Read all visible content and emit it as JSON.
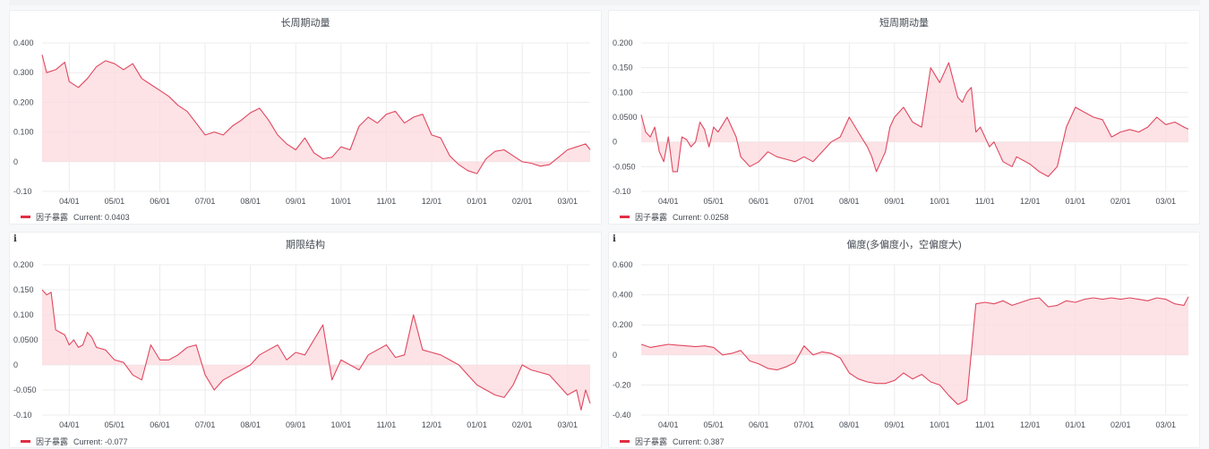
{
  "legend_label": "因子暴露",
  "current_prefix": "Current:",
  "info_icon_glyph": "i",
  "colors": {
    "line": "#e0475e",
    "fill": "#fcdbe0",
    "legend": "#e02f44",
    "grid": "#ececec"
  },
  "chart_data": [
    {
      "type": "area",
      "title": "长周期动量",
      "ylim": [
        -0.1,
        0.4
      ],
      "yticks": [
        -0.1,
        0,
        0.1,
        0.2,
        0.3,
        0.4
      ],
      "ytick_labels": [
        "-0.10",
        "0",
        "0.100",
        "0.200",
        "0.300",
        "0.400"
      ],
      "xlim": [
        0,
        12.1
      ],
      "xticks": [
        0.6,
        1.6,
        2.6,
        3.6,
        4.6,
        5.6,
        6.6,
        7.6,
        8.6,
        9.6,
        10.6,
        11.6
      ],
      "xtick_labels": [
        "04/01",
        "05/01",
        "06/01",
        "07/01",
        "08/01",
        "09/01",
        "10/01",
        "11/01",
        "12/01",
        "01/01",
        "02/01",
        "03/01"
      ],
      "current": "0.0403",
      "series": [
        {
          "name": "因子暴露",
          "x": [
            0,
            0.1,
            0.3,
            0.5,
            0.6,
            0.8,
            1.0,
            1.2,
            1.4,
            1.6,
            1.8,
            2.0,
            2.2,
            2.4,
            2.6,
            2.8,
            3.0,
            3.2,
            3.4,
            3.6,
            3.8,
            4.0,
            4.2,
            4.4,
            4.6,
            4.8,
            5.0,
            5.2,
            5.4,
            5.6,
            5.8,
            6.0,
            6.2,
            6.4,
            6.6,
            6.8,
            7.0,
            7.2,
            7.4,
            7.6,
            7.8,
            8.0,
            8.2,
            8.4,
            8.6,
            8.8,
            9.0,
            9.2,
            9.4,
            9.6,
            9.8,
            10.0,
            10.2,
            10.4,
            10.6,
            10.8,
            11.0,
            11.2,
            11.4,
            11.6,
            11.8,
            12.0,
            12.1
          ],
          "values": [
            0.36,
            0.3,
            0.31,
            0.335,
            0.27,
            0.25,
            0.28,
            0.32,
            0.34,
            0.33,
            0.31,
            0.33,
            0.28,
            0.26,
            0.24,
            0.22,
            0.19,
            0.17,
            0.13,
            0.09,
            0.1,
            0.09,
            0.12,
            0.14,
            0.165,
            0.18,
            0.14,
            0.09,
            0.06,
            0.04,
            0.08,
            0.03,
            0.01,
            0.015,
            0.05,
            0.04,
            0.12,
            0.15,
            0.13,
            0.16,
            0.17,
            0.13,
            0.15,
            0.16,
            0.09,
            0.08,
            0.02,
            -0.01,
            -0.03,
            -0.04,
            0.01,
            0.035,
            0.04,
            0.02,
            0.0,
            -0.005,
            -0.015,
            -0.01,
            0.015,
            0.04,
            0.05,
            0.06,
            0.0403
          ]
        }
      ]
    },
    {
      "type": "area",
      "title": "短周期动量",
      "ylim": [
        -0.1,
        0.2
      ],
      "yticks": [
        -0.1,
        -0.05,
        0,
        0.05,
        0.1,
        0.15,
        0.2
      ],
      "ytick_labels": [
        "-0.10",
        "-0.050",
        "0",
        "0.0500",
        "0.100",
        "0.150",
        "0.200"
      ],
      "xlim": [
        0,
        12.1
      ],
      "xticks": [
        0.6,
        1.6,
        2.6,
        3.6,
        4.6,
        5.6,
        6.6,
        7.6,
        8.6,
        9.6,
        10.6,
        11.6
      ],
      "xtick_labels": [
        "04/01",
        "05/01",
        "06/01",
        "07/01",
        "08/01",
        "09/01",
        "10/01",
        "11/01",
        "12/01",
        "01/01",
        "02/01",
        "03/01"
      ],
      "current": "0.0258",
      "series": [
        {
          "name": "因子暴露",
          "x": [
            0,
            0.1,
            0.2,
            0.3,
            0.4,
            0.5,
            0.6,
            0.7,
            0.8,
            0.9,
            1.0,
            1.1,
            1.2,
            1.3,
            1.4,
            1.5,
            1.6,
            1.7,
            1.8,
            1.9,
            2.0,
            2.1,
            2.2,
            2.4,
            2.6,
            2.8,
            3.0,
            3.2,
            3.4,
            3.6,
            3.8,
            4.0,
            4.2,
            4.4,
            4.6,
            4.8,
            5.0,
            5.1,
            5.2,
            5.4,
            5.5,
            5.6,
            5.8,
            6.0,
            6.2,
            6.4,
            6.6,
            6.8,
            7.0,
            7.1,
            7.2,
            7.3,
            7.4,
            7.5,
            7.6,
            7.7,
            7.8,
            8.0,
            8.2,
            8.3,
            8.5,
            8.6,
            8.8,
            9.0,
            9.2,
            9.4,
            9.6,
            9.8,
            10.0,
            10.2,
            10.4,
            10.6,
            10.8,
            11.0,
            11.2,
            11.4,
            11.6,
            11.8,
            12.0,
            12.1
          ],
          "values": [
            0.055,
            0.02,
            0.01,
            0.03,
            -0.02,
            -0.04,
            0.01,
            -0.06,
            -0.06,
            0.01,
            0.005,
            -0.01,
            0.0,
            0.04,
            0.025,
            -0.01,
            0.03,
            0.02,
            0.035,
            0.05,
            0.03,
            0.01,
            -0.03,
            -0.05,
            -0.04,
            -0.02,
            -0.03,
            -0.035,
            -0.04,
            -0.03,
            -0.04,
            -0.02,
            0.0,
            0.01,
            0.05,
            0.02,
            -0.01,
            -0.03,
            -0.06,
            -0.02,
            0.03,
            0.05,
            0.07,
            0.04,
            0.03,
            0.15,
            0.12,
            0.16,
            0.09,
            0.08,
            0.1,
            0.11,
            0.02,
            0.03,
            0.01,
            -0.01,
            0.0,
            -0.04,
            -0.05,
            -0.03,
            -0.04,
            -0.045,
            -0.06,
            -0.07,
            -0.05,
            0.03,
            0.07,
            0.06,
            0.05,
            0.045,
            0.01,
            0.02,
            0.025,
            0.02,
            0.03,
            0.05,
            0.035,
            0.04,
            0.03,
            0.0258
          ]
        }
      ]
    },
    {
      "type": "area",
      "title": "期限结构",
      "ylim": [
        -0.1,
        0.2
      ],
      "yticks": [
        -0.1,
        -0.05,
        0,
        0.05,
        0.1,
        0.15,
        0.2
      ],
      "ytick_labels": [
        "-0.10",
        "-0.050",
        "0",
        "0.0500",
        "0.100",
        "0.150",
        "0.200"
      ],
      "xlim": [
        0,
        12.1
      ],
      "xticks": [
        0.6,
        1.6,
        2.6,
        3.6,
        4.6,
        5.6,
        6.6,
        7.6,
        8.6,
        9.6,
        10.6,
        11.6
      ],
      "xtick_labels": [
        "04/01",
        "05/01",
        "06/01",
        "07/01",
        "08/01",
        "09/01",
        "10/01",
        "11/01",
        "12/01",
        "01/01",
        "02/01",
        "03/01"
      ],
      "current": "-0.077",
      "series": [
        {
          "name": "因子暴露",
          "x": [
            0,
            0.1,
            0.2,
            0.3,
            0.4,
            0.5,
            0.6,
            0.7,
            0.8,
            0.9,
            1.0,
            1.1,
            1.2,
            1.4,
            1.6,
            1.8,
            2.0,
            2.2,
            2.4,
            2.6,
            2.8,
            3.0,
            3.2,
            3.4,
            3.6,
            3.8,
            4.0,
            4.2,
            4.4,
            4.6,
            4.8,
            5.0,
            5.2,
            5.4,
            5.6,
            5.8,
            6.0,
            6.2,
            6.4,
            6.6,
            6.8,
            7.0,
            7.2,
            7.4,
            7.6,
            7.8,
            8.0,
            8.2,
            8.4,
            8.6,
            8.8,
            9.0,
            9.2,
            9.4,
            9.6,
            9.8,
            10.0,
            10.2,
            10.4,
            10.6,
            10.8,
            11.0,
            11.2,
            11.4,
            11.6,
            11.8,
            11.9,
            12.0,
            12.1
          ],
          "values": [
            0.15,
            0.14,
            0.145,
            0.07,
            0.065,
            0.06,
            0.04,
            0.05,
            0.035,
            0.04,
            0.065,
            0.055,
            0.035,
            0.03,
            0.01,
            0.005,
            -0.02,
            -0.03,
            0.04,
            0.01,
            0.01,
            0.02,
            0.035,
            0.04,
            -0.02,
            -0.05,
            -0.03,
            -0.02,
            -0.01,
            0.0,
            0.02,
            0.03,
            0.04,
            0.01,
            0.025,
            0.02,
            0.05,
            0.08,
            -0.03,
            0.01,
            0.0,
            -0.01,
            0.02,
            0.03,
            0.04,
            0.015,
            0.02,
            0.1,
            0.03,
            0.025,
            0.02,
            0.01,
            0.0,
            -0.02,
            -0.04,
            -0.05,
            -0.06,
            -0.065,
            -0.04,
            0.0,
            -0.01,
            -0.015,
            -0.02,
            -0.04,
            -0.06,
            -0.05,
            -0.09,
            -0.05,
            -0.077
          ]
        }
      ]
    },
    {
      "type": "area",
      "title": "偏度(多偏度小，空偏度大)",
      "ylim": [
        -0.4,
        0.6
      ],
      "yticks": [
        -0.4,
        -0.2,
        0,
        0.2,
        0.4,
        0.6
      ],
      "ytick_labels": [
        "-0.40",
        "-0.20",
        "0",
        "0.200",
        "0.400",
        "0.600"
      ],
      "xlim": [
        0,
        12.1
      ],
      "xticks": [
        0.6,
        1.6,
        2.6,
        3.6,
        4.6,
        5.6,
        6.6,
        7.6,
        8.6,
        9.6,
        10.6,
        11.6
      ],
      "xtick_labels": [
        "04/01",
        "05/01",
        "06/01",
        "07/01",
        "08/01",
        "09/01",
        "10/01",
        "11/01",
        "12/01",
        "01/01",
        "02/01",
        "03/01"
      ],
      "current": "0.387",
      "series": [
        {
          "name": "因子暴露",
          "x": [
            0,
            0.2,
            0.4,
            0.6,
            0.8,
            1.0,
            1.2,
            1.4,
            1.6,
            1.8,
            2.0,
            2.2,
            2.4,
            2.6,
            2.8,
            3.0,
            3.2,
            3.4,
            3.6,
            3.8,
            4.0,
            4.2,
            4.4,
            4.6,
            4.8,
            5.0,
            5.2,
            5.4,
            5.6,
            5.8,
            6.0,
            6.2,
            6.4,
            6.6,
            6.8,
            7.0,
            7.2,
            7.4,
            7.6,
            7.8,
            8.0,
            8.2,
            8.4,
            8.6,
            8.8,
            9.0,
            9.2,
            9.4,
            9.6,
            9.8,
            10.0,
            10.2,
            10.4,
            10.6,
            10.8,
            11.0,
            11.2,
            11.4,
            11.6,
            11.8,
            12.0,
            12.1
          ],
          "values": [
            0.07,
            0.05,
            0.06,
            0.07,
            0.065,
            0.06,
            0.055,
            0.06,
            0.05,
            0.0,
            0.01,
            0.03,
            -0.04,
            -0.06,
            -0.09,
            -0.1,
            -0.08,
            -0.05,
            0.06,
            0.0,
            0.02,
            0.01,
            -0.02,
            -0.12,
            -0.16,
            -0.18,
            -0.19,
            -0.19,
            -0.17,
            -0.12,
            -0.16,
            -0.13,
            -0.18,
            -0.2,
            -0.27,
            -0.33,
            -0.3,
            0.34,
            0.35,
            0.34,
            0.36,
            0.33,
            0.35,
            0.37,
            0.38,
            0.32,
            0.33,
            0.36,
            0.35,
            0.37,
            0.38,
            0.37,
            0.38,
            0.37,
            0.38,
            0.37,
            0.36,
            0.38,
            0.37,
            0.34,
            0.33,
            0.387
          ]
        }
      ]
    }
  ]
}
